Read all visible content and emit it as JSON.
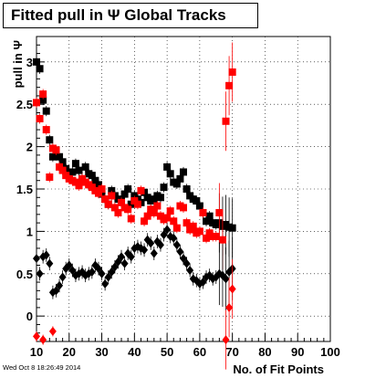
{
  "title": "Fitted pull in Ψ   Global Tracks",
  "timestamp": "Wed Oct  8 18:26:49 2014",
  "colors": {
    "series_black": "#000000",
    "series_red": "#ff0000",
    "grid": "#000000"
  },
  "chart_data": {
    "type": "scatter",
    "title": "Fitted pull in Ψ   Global Tracks",
    "xlabel": "No. of Fit Points",
    "ylabel": "pull in Ψ",
    "xlim": [
      10,
      100
    ],
    "ylim": [
      -0.3,
      3.3
    ],
    "grid": true,
    "x_ticks": [
      "10",
      "20",
      "30",
      "40",
      "50",
      "60",
      "70",
      "80",
      "90",
      "100"
    ],
    "y_ticks": [
      "0",
      "0.5",
      "1",
      "1.5",
      "2",
      "2.5",
      "3"
    ],
    "series": [
      {
        "marker": "square",
        "color": "#000000",
        "x": [
          10,
          11,
          12,
          13,
          14,
          15,
          16,
          17,
          18,
          19,
          20,
          21,
          22,
          23,
          24,
          25,
          26,
          27,
          28,
          29,
          30,
          31,
          32,
          33,
          34,
          35,
          36,
          37,
          38,
          39,
          40,
          41,
          42,
          43,
          44,
          45,
          46,
          47,
          48,
          49,
          50,
          51,
          52,
          53,
          54,
          55,
          56,
          57,
          58,
          59,
          60,
          61,
          62,
          63,
          64,
          65,
          66,
          67,
          68,
          69,
          70
        ],
        "y": [
          3.0,
          2.92,
          2.55,
          2.42,
          2.08,
          1.88,
          1.96,
          1.88,
          1.82,
          1.74,
          1.68,
          1.7,
          1.8,
          1.72,
          1.62,
          1.76,
          1.68,
          1.66,
          1.6,
          1.55,
          1.44,
          1.38,
          1.32,
          1.48,
          1.42,
          1.38,
          1.36,
          1.44,
          1.5,
          1.32,
          1.42,
          1.38,
          1.34,
          1.46,
          1.4,
          1.36,
          1.38,
          1.42,
          1.4,
          1.52,
          1.76,
          1.68,
          1.58,
          1.56,
          1.62,
          1.7,
          1.5,
          1.42,
          1.38,
          1.36,
          1.3,
          1.22,
          1.12,
          1.18,
          1.1,
          1.08,
          1.1,
          1.06,
          1.08,
          1.05,
          1.04
        ]
      },
      {
        "marker": "square",
        "color": "#ff0000",
        "x": [
          10,
          11,
          12,
          13,
          14,
          15,
          16,
          17,
          18,
          19,
          20,
          21,
          22,
          23,
          24,
          25,
          26,
          27,
          28,
          29,
          30,
          31,
          32,
          33,
          34,
          35,
          36,
          37,
          38,
          39,
          40,
          41,
          42,
          43,
          44,
          45,
          46,
          47,
          48,
          49,
          50,
          51,
          52,
          53,
          54,
          55,
          56,
          57,
          58,
          59,
          60,
          61,
          62,
          63,
          64,
          65,
          66,
          67,
          68,
          69,
          70
        ],
        "y": [
          2.52,
          2.33,
          2.62,
          2.2,
          1.64,
          1.98,
          1.96,
          1.76,
          1.72,
          1.66,
          1.62,
          1.6,
          1.58,
          1.54,
          1.62,
          1.58,
          1.55,
          1.52,
          1.48,
          1.45,
          1.5,
          1.38,
          1.32,
          1.42,
          1.28,
          1.22,
          1.34,
          1.28,
          1.26,
          1.15,
          1.36,
          1.32,
          1.48,
          1.12,
          1.18,
          1.26,
          1.22,
          1.3,
          1.18,
          1.14,
          1.16,
          1.24,
          1.12,
          1.04,
          1.3,
          1.28,
          1.1,
          1.02,
          1.06,
          0.98,
          1.0,
          1.22,
          0.92,
          0.98,
          0.94,
          0.94,
          1.22,
          0.9,
          2.3,
          2.72,
          2.88
        ]
      },
      {
        "marker": "diamond",
        "color": "#000000",
        "x": [
          10,
          11,
          12,
          13,
          14,
          15,
          16,
          17,
          18,
          19,
          20,
          21,
          22,
          23,
          24,
          25,
          26,
          27,
          28,
          29,
          30,
          31,
          32,
          33,
          34,
          35,
          36,
          37,
          38,
          39,
          40,
          41,
          42,
          43,
          44,
          45,
          46,
          47,
          48,
          49,
          50,
          51,
          52,
          53,
          54,
          55,
          56,
          57,
          58,
          59,
          60,
          61,
          62,
          63,
          64,
          65,
          66,
          67,
          68,
          69,
          70
        ],
        "y": [
          0.68,
          0.5,
          0.7,
          0.72,
          0.62,
          0.28,
          0.3,
          0.36,
          0.46,
          0.56,
          0.6,
          0.54,
          0.48,
          0.5,
          0.52,
          0.48,
          0.5,
          0.52,
          0.6,
          0.56,
          0.5,
          0.38,
          0.46,
          0.52,
          0.58,
          0.64,
          0.7,
          0.62,
          0.74,
          0.7,
          0.8,
          0.82,
          0.8,
          0.78,
          0.9,
          0.86,
          0.74,
          0.88,
          0.84,
          0.96,
          1.02,
          0.94,
          0.92,
          0.84,
          0.76,
          0.68,
          0.62,
          0.54,
          0.44,
          0.42,
          0.38,
          0.4,
          0.46,
          0.48,
          0.44,
          0.46,
          0.5,
          0.48,
          0.44,
          0.52,
          0.56
        ]
      },
      {
        "marker": "diamond",
        "color": "#ff0000",
        "x": [
          10,
          12,
          15,
          68,
          69,
          70
        ],
        "y": [
          -0.24,
          -0.28,
          -0.18,
          -0.28,
          0.1,
          0.32
        ]
      }
    ]
  }
}
